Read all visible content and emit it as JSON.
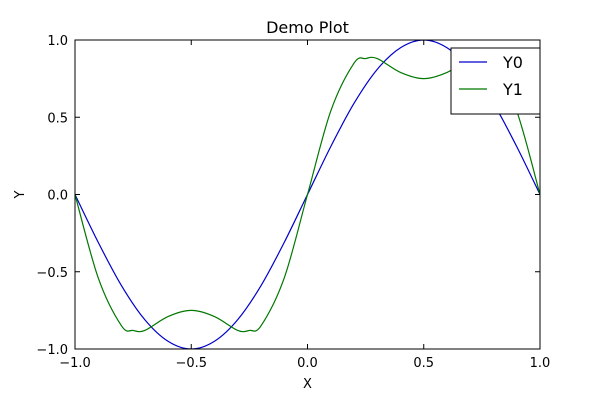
{
  "chart_data": {
    "type": "line",
    "title": "Demo Plot",
    "xlabel": "X",
    "ylabel": "Y",
    "xlim": [
      -1.0,
      1.0
    ],
    "ylim": [
      -1.0,
      1.0
    ],
    "grid": false,
    "legend_position": "top-right",
    "x_ticks": [
      -1.0,
      -0.5,
      0.0,
      0.5,
      1.0
    ],
    "x_tick_labels": [
      "−1.0",
      "−0.5",
      "0.0",
      "0.5",
      "1.0"
    ],
    "y_ticks": [
      -1.0,
      -0.5,
      0.0,
      0.5,
      1.0
    ],
    "y_tick_labels": [
      "−1.0",
      "−0.5",
      "0.0",
      "0.5",
      "1.0"
    ],
    "series": [
      {
        "name": "Y0",
        "color": "#0000cc",
        "x": [
          -1.0,
          -0.9,
          -0.8,
          -0.7,
          -0.6,
          -0.5,
          -0.4,
          -0.3,
          -0.2,
          -0.1,
          0.0,
          0.1,
          0.2,
          0.3,
          0.4,
          0.5,
          0.6,
          0.7,
          0.8,
          0.9,
          1.0
        ],
        "y": [
          0.0,
          -0.31,
          -0.59,
          -0.81,
          -0.95,
          -1.0,
          -0.95,
          -0.81,
          -0.59,
          -0.31,
          0.0,
          0.31,
          0.59,
          0.81,
          0.95,
          1.0,
          0.95,
          0.81,
          0.59,
          0.31,
          0.0
        ]
      },
      {
        "name": "Y1",
        "color": "#007700",
        "x": [
          -1.0,
          -0.9,
          -0.8,
          -0.75,
          -0.7,
          -0.6,
          -0.5,
          -0.4,
          -0.3,
          -0.25,
          -0.2,
          -0.1,
          0.0,
          0.1,
          0.2,
          0.25,
          0.3,
          0.4,
          0.5,
          0.6,
          0.7,
          0.75,
          0.8,
          0.9,
          1.0
        ],
        "y": [
          0.0,
          -0.54,
          -0.85,
          -0.88,
          -0.88,
          -0.79,
          -0.75,
          -0.79,
          -0.88,
          -0.88,
          -0.85,
          -0.54,
          0.0,
          0.54,
          0.85,
          0.88,
          0.88,
          0.79,
          0.75,
          0.79,
          0.88,
          0.88,
          0.85,
          0.54,
          0.0
        ]
      }
    ]
  }
}
